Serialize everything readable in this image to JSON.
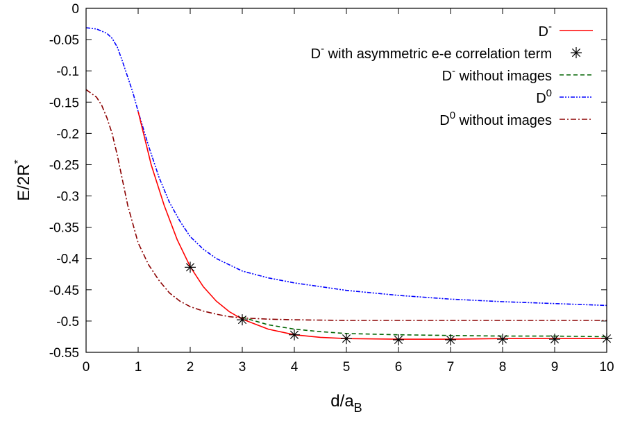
{
  "chart_data": {
    "type": "line",
    "xlabel": {
      "main": "d/a",
      "sub": "B"
    },
    "ylabel": {
      "main": "E/2R",
      "sup": "*"
    },
    "xlim": [
      0,
      10
    ],
    "ylim": [
      -0.55,
      0
    ],
    "xticks": [
      "0",
      "1",
      "2",
      "3",
      "4",
      "5",
      "6",
      "7",
      "8",
      "9",
      "10"
    ],
    "xtick_values": [
      0,
      1,
      2,
      3,
      4,
      5,
      6,
      7,
      8,
      9,
      10
    ],
    "yticks": [
      "0",
      "-0.05",
      "-0.1",
      "-0.15",
      "-0.2",
      "-0.25",
      "-0.3",
      "-0.35",
      "-0.4",
      "-0.45",
      "-0.5",
      "-0.55"
    ],
    "ytick_values": [
      0,
      -0.05,
      -0.1,
      -0.15,
      -0.2,
      -0.25,
      -0.3,
      -0.35,
      -0.4,
      -0.45,
      -0.5,
      -0.55
    ],
    "grid": false,
    "legend_placement": "top-right",
    "series": [
      {
        "key": "dminus",
        "legend": {
          "base": "D",
          "sup": "-",
          "rest": ""
        },
        "style": "solid",
        "color": "#ff0000",
        "x": [
          1.0,
          1.25,
          1.5,
          1.75,
          2.0,
          2.25,
          2.5,
          2.75,
          3.0,
          3.5,
          4.0,
          4.5,
          5.0,
          6.0,
          7.0,
          8.0,
          9.0,
          10.0
        ],
        "y": [
          -0.165,
          -0.25,
          -0.315,
          -0.37,
          -0.413,
          -0.445,
          -0.468,
          -0.485,
          -0.497,
          -0.513,
          -0.522,
          -0.526,
          -0.528,
          -0.529,
          -0.529,
          -0.528,
          -0.528,
          -0.528
        ]
      },
      {
        "key": "dminus_asym",
        "legend": {
          "base": "D",
          "sup": "-",
          "rest": " with asymmetric e-e correlation term"
        },
        "style": "markers",
        "color": "#000000",
        "x": [
          2,
          3,
          4,
          5,
          6,
          7,
          8,
          9,
          10
        ],
        "y": [
          -0.414,
          -0.498,
          -0.522,
          -0.528,
          -0.53,
          -0.53,
          -0.529,
          -0.529,
          -0.528
        ]
      },
      {
        "key": "dminus_noimg",
        "legend": {
          "base": "D",
          "sup": "-",
          "rest": " without images"
        },
        "style": "dashed",
        "color": "#006400",
        "x": [
          3.0,
          3.5,
          4.0,
          4.5,
          5.0,
          6.0,
          7.0,
          8.0,
          9.0,
          10.0
        ],
        "y": [
          -0.494,
          -0.506,
          -0.513,
          -0.517,
          -0.52,
          -0.522,
          -0.523,
          -0.524,
          -0.524,
          -0.525
        ]
      },
      {
        "key": "d0",
        "legend": {
          "base": "D",
          "sup": "0",
          "rest": ""
        },
        "style": "dashdotdot",
        "color": "#0000ff",
        "x": [
          0.0,
          0.2,
          0.4,
          0.5,
          0.6,
          0.7,
          0.8,
          0.9,
          1.0,
          1.2,
          1.4,
          1.6,
          1.8,
          2.0,
          2.25,
          2.5,
          3.0,
          3.5,
          4.0,
          5.0,
          6.0,
          7.0,
          8.0,
          9.0,
          10.0
        ],
        "y": [
          -0.031,
          -0.033,
          -0.04,
          -0.048,
          -0.062,
          -0.085,
          -0.11,
          -0.135,
          -0.165,
          -0.22,
          -0.27,
          -0.31,
          -0.34,
          -0.365,
          -0.385,
          -0.4,
          -0.42,
          -0.431,
          -0.439,
          -0.451,
          -0.459,
          -0.465,
          -0.469,
          -0.472,
          -0.475
        ]
      },
      {
        "key": "d0_noimg",
        "legend": {
          "base": "D",
          "sup": "0",
          "rest": " without images"
        },
        "style": "dashdot",
        "color": "#8b0000",
        "x": [
          0.0,
          0.2,
          0.3,
          0.4,
          0.5,
          0.6,
          0.7,
          0.8,
          1.0,
          1.2,
          1.4,
          1.6,
          1.8,
          2.0,
          2.25,
          2.5,
          2.75,
          3.0,
          3.5,
          4.0,
          5.0,
          6.0,
          7.0,
          8.0,
          9.0,
          10.0
        ],
        "y": [
          -0.13,
          -0.142,
          -0.155,
          -0.175,
          -0.2,
          -0.235,
          -0.275,
          -0.315,
          -0.375,
          -0.41,
          -0.435,
          -0.455,
          -0.468,
          -0.477,
          -0.484,
          -0.489,
          -0.493,
          -0.495,
          -0.497,
          -0.498,
          -0.499,
          -0.499,
          -0.499,
          -0.499,
          -0.499,
          -0.499
        ]
      }
    ]
  }
}
